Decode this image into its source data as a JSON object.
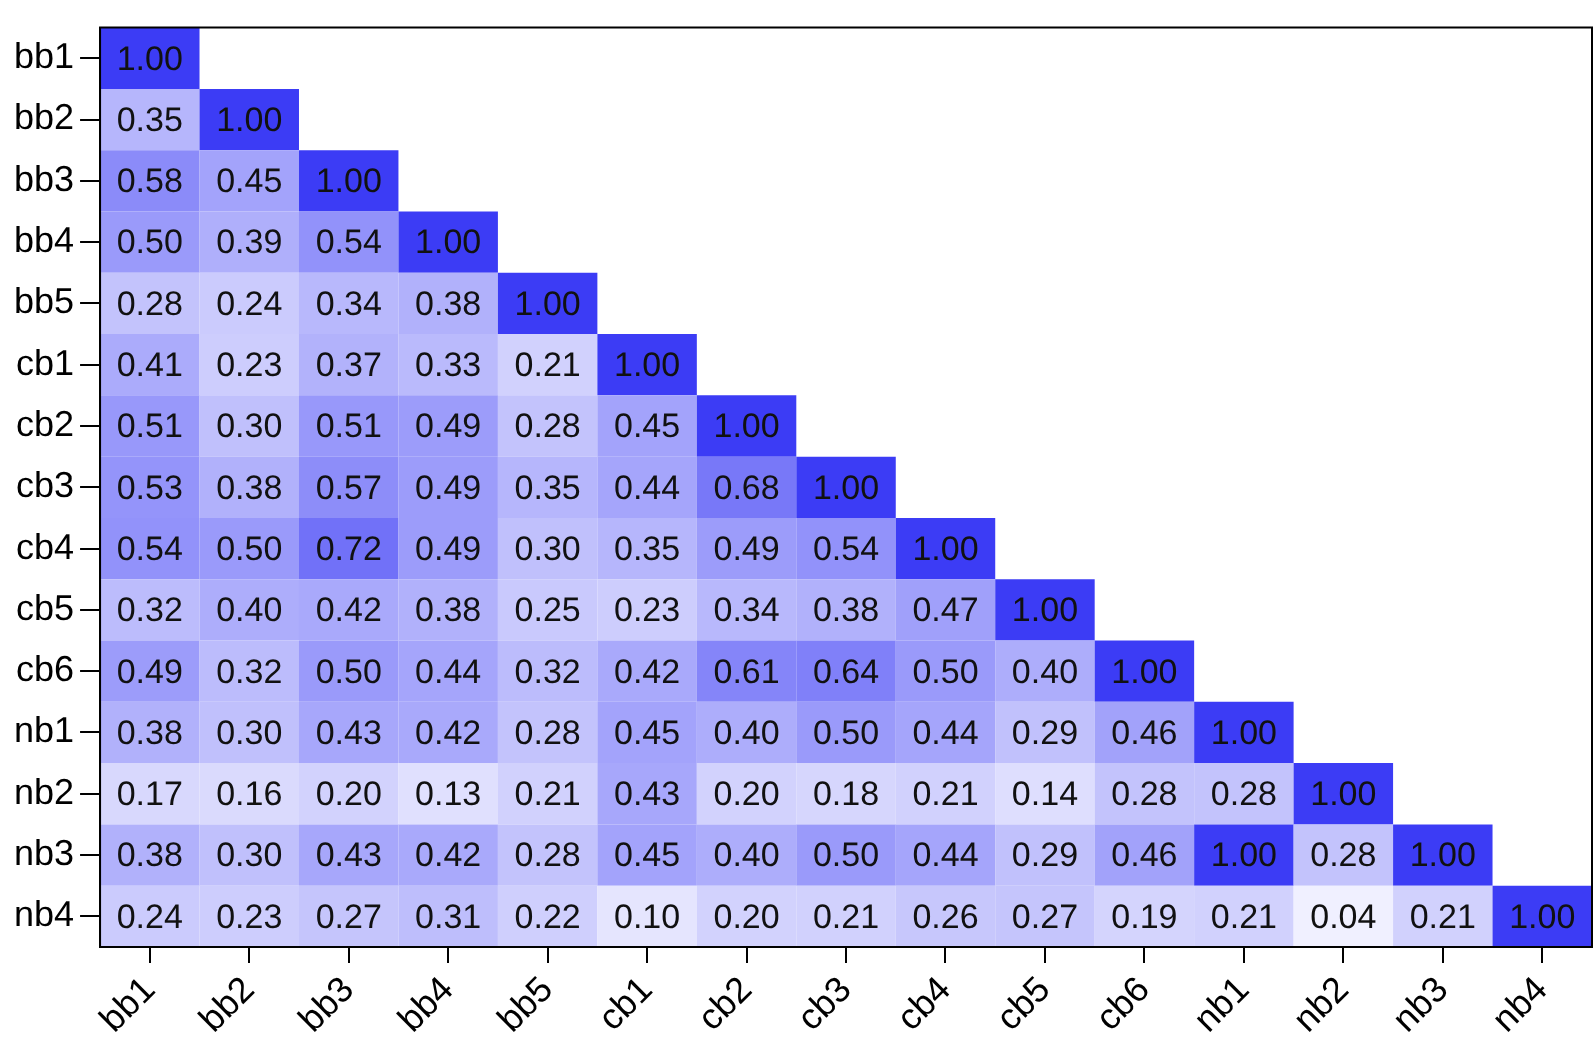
{
  "chart_data": {
    "type": "heatmap",
    "categories": [
      "bb1",
      "bb2",
      "bb3",
      "bb4",
      "bb5",
      "cb1",
      "cb2",
      "cb3",
      "cb4",
      "cb5",
      "cb6",
      "nb1",
      "nb2",
      "nb3",
      "nb4"
    ],
    "y_categories": [
      "bb1",
      "bb2",
      "bb3",
      "bb4",
      "bb5",
      "cb1",
      "cb2",
      "cb3",
      "cb4",
      "cb5",
      "cb6",
      "nb1",
      "nb2",
      "nb3",
      "nb4"
    ],
    "cells": [
      [
        1.0,
        null,
        null,
        null,
        null,
        null,
        null,
        null,
        null,
        null,
        null,
        null,
        null,
        null,
        null
      ],
      [
        0.35,
        1.0,
        null,
        null,
        null,
        null,
        null,
        null,
        null,
        null,
        null,
        null,
        null,
        null,
        null
      ],
      [
        0.58,
        0.45,
        1.0,
        null,
        null,
        null,
        null,
        null,
        null,
        null,
        null,
        null,
        null,
        null,
        null
      ],
      [
        0.5,
        0.39,
        0.54,
        1.0,
        null,
        null,
        null,
        null,
        null,
        null,
        null,
        null,
        null,
        null,
        null
      ],
      [
        0.28,
        0.24,
        0.34,
        0.38,
        1.0,
        null,
        null,
        null,
        null,
        null,
        null,
        null,
        null,
        null,
        null
      ],
      [
        0.41,
        0.23,
        0.37,
        0.33,
        0.21,
        1.0,
        null,
        null,
        null,
        null,
        null,
        null,
        null,
        null,
        null
      ],
      [
        0.51,
        0.3,
        0.51,
        0.49,
        0.28,
        0.45,
        1.0,
        null,
        null,
        null,
        null,
        null,
        null,
        null,
        null
      ],
      [
        0.53,
        0.38,
        0.57,
        0.49,
        0.35,
        0.44,
        0.68,
        1.0,
        null,
        null,
        null,
        null,
        null,
        null,
        null
      ],
      [
        0.54,
        0.5,
        0.72,
        0.49,
        0.3,
        0.35,
        0.49,
        0.54,
        1.0,
        null,
        null,
        null,
        null,
        null,
        null
      ],
      [
        0.32,
        0.4,
        0.42,
        0.38,
        0.25,
        0.23,
        0.34,
        0.38,
        0.47,
        1.0,
        null,
        null,
        null,
        null,
        null
      ],
      [
        0.49,
        0.32,
        0.5,
        0.44,
        0.32,
        0.42,
        0.61,
        0.64,
        0.5,
        0.4,
        1.0,
        null,
        null,
        null,
        null
      ],
      [
        0.38,
        0.3,
        0.43,
        0.42,
        0.28,
        0.45,
        0.4,
        0.5,
        0.44,
        0.29,
        0.46,
        1.0,
        null,
        null,
        null
      ],
      [
        0.17,
        0.16,
        0.2,
        0.13,
        0.21,
        0.43,
        0.2,
        0.18,
        0.21,
        0.14,
        0.28,
        0.28,
        1.0,
        null,
        null
      ],
      [
        0.38,
        0.3,
        0.43,
        0.42,
        0.28,
        0.45,
        0.4,
        0.5,
        0.44,
        0.29,
        0.46,
        1.0,
        0.28,
        1.0,
        null
      ],
      [
        0.24,
        0.23,
        0.27,
        0.31,
        0.22,
        0.1,
        0.2,
        0.21,
        0.26,
        0.27,
        0.19,
        0.21,
        0.04,
        0.21,
        1.0
      ]
    ],
    "cell_labels": [
      [
        "1.00",
        null,
        null,
        null,
        null,
        null,
        null,
        null,
        null,
        null,
        null,
        null,
        null,
        null,
        null
      ],
      [
        "0.35",
        "1.00",
        null,
        null,
        null,
        null,
        null,
        null,
        null,
        null,
        null,
        null,
        null,
        null,
        null
      ],
      [
        "0.58",
        "0.45",
        "1.00",
        null,
        null,
        null,
        null,
        null,
        null,
        null,
        null,
        null,
        null,
        null,
        null
      ],
      [
        "0.50",
        "0.39",
        "0.54",
        "1.00",
        null,
        null,
        null,
        null,
        null,
        null,
        null,
        null,
        null,
        null,
        null
      ],
      [
        "0.28",
        "0.24",
        "0.34",
        "0.38",
        "1.00",
        null,
        null,
        null,
        null,
        null,
        null,
        null,
        null,
        null,
        null
      ],
      [
        "0.41",
        "0.23",
        "0.37",
        "0.33",
        "0.21",
        "1.00",
        null,
        null,
        null,
        null,
        null,
        null,
        null,
        null,
        null
      ],
      [
        "0.51",
        "0.30",
        "0.51",
        "0.49",
        "0.28",
        "0.45",
        "1.00",
        null,
        null,
        null,
        null,
        null,
        null,
        null,
        null
      ],
      [
        "0.53",
        "0.38",
        "0.57",
        "0.49",
        "0.35",
        "0.44",
        "0.68",
        "1.00",
        null,
        null,
        null,
        null,
        null,
        null,
        null
      ],
      [
        "0.54",
        "0.50",
        "0.72",
        "0.49",
        "0.30",
        "0.35",
        "0.49",
        "0.54",
        "1.00",
        null,
        null,
        null,
        null,
        null,
        null
      ],
      [
        "0.32",
        "0.40",
        "0.42",
        "0.38",
        "0.25",
        "0.23",
        "0.34",
        "0.38",
        "0.47",
        "1.00",
        null,
        null,
        null,
        null,
        null
      ],
      [
        "0.49",
        "0.32",
        "0.50",
        "0.44",
        "0.32",
        "0.42",
        "0.61",
        "0.64",
        "0.50",
        "0.40",
        "1.00",
        null,
        null,
        null,
        null
      ],
      [
        "0.38",
        "0.30",
        "0.43",
        "0.42",
        "0.28",
        "0.45",
        "0.40",
        "0.50",
        "0.44",
        "0.29",
        "0.46",
        "1.00",
        null,
        null,
        null
      ],
      [
        "0.17",
        "0.16",
        "0.20",
        "0.13",
        "0.21",
        "0.43",
        "0.20",
        "0.18",
        "0.21",
        "0.14",
        "0.28",
        "0.28",
        "1.00",
        null,
        null
      ],
      [
        "0.38",
        "0.30",
        "0.43",
        "0.42",
        "0.28",
        "0.45",
        "0.40",
        "0.50",
        "0.44",
        "0.29",
        "0.46",
        "1.00",
        "0.28",
        "1.00",
        null
      ],
      [
        "0.24",
        "0.23",
        "0.27",
        "0.31",
        "0.22",
        "0.10",
        "0.20",
        "0.21",
        "0.26",
        "0.27",
        "0.19",
        "0.21",
        "0.04",
        "0.21",
        "1.00"
      ]
    ]
  }
}
